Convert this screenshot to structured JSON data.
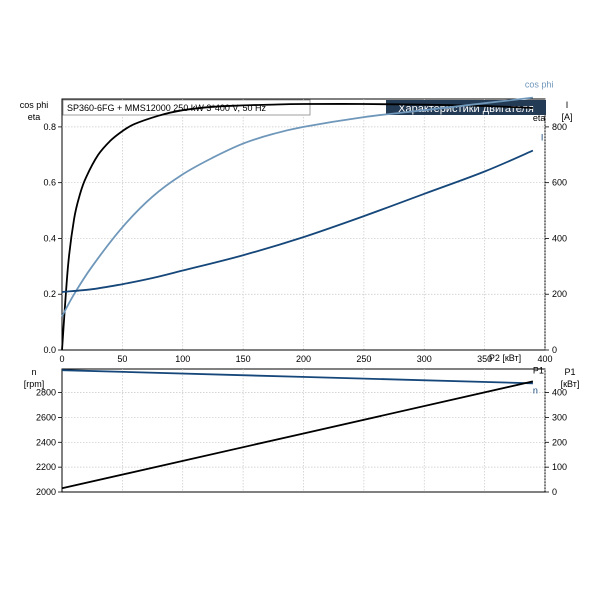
{
  "chart_data": [
    {
      "type": "line",
      "header": {
        "info": "SP360-6FG + MMS12000   250 kW   3*400 V, 50 Hz",
        "title": "Характеристики двигателя"
      },
      "left_axis": {
        "label_line1": "cos phi",
        "label_line2": "eta",
        "ylim": [
          0,
          0.9
        ],
        "ticks": [
          "0.0",
          "0.2",
          "0.4",
          "0.6",
          "0.8"
        ]
      },
      "right_axis": {
        "label_line1": "I",
        "label_line2": "[A]",
        "ylim": [
          0,
          900
        ],
        "ticks": [
          "0",
          "200",
          "400",
          "600",
          "800"
        ]
      },
      "x_axis": {
        "label": "P2 [кВт]",
        "xlim": [
          0,
          400
        ],
        "ticks": [
          "0",
          "50",
          "100",
          "150",
          "200",
          "250",
          "300",
          "350",
          "400"
        ]
      },
      "grid": true,
      "series": [
        {
          "name": "eta",
          "axis": "left",
          "color": "#000000",
          "x": [
            0,
            5,
            10,
            15,
            20,
            30,
            40,
            50,
            60,
            80,
            100,
            125,
            150,
            175,
            200,
            250,
            300,
            350,
            390
          ],
          "y": [
            0.0,
            0.3,
            0.47,
            0.56,
            0.62,
            0.7,
            0.75,
            0.785,
            0.81,
            0.84,
            0.86,
            0.872,
            0.877,
            0.88,
            0.882,
            0.882,
            0.88,
            0.875,
            0.868
          ]
        },
        {
          "name": "cos phi",
          "axis": "left",
          "color": "#6f97ba",
          "x": [
            0,
            10,
            25,
            50,
            75,
            100,
            125,
            150,
            175,
            200,
            250,
            300,
            350,
            390
          ],
          "y": [
            0.12,
            0.2,
            0.3,
            0.44,
            0.55,
            0.63,
            0.69,
            0.74,
            0.775,
            0.8,
            0.835,
            0.86,
            0.885,
            0.905
          ]
        },
        {
          "name": "I",
          "axis": "right",
          "color": "#16477a",
          "x": [
            0,
            25,
            50,
            75,
            100,
            150,
            200,
            250,
            300,
            350,
            390
          ],
          "y": [
            208,
            218,
            236,
            258,
            285,
            340,
            405,
            480,
            560,
            640,
            715
          ]
        }
      ]
    },
    {
      "type": "line",
      "left_axis": {
        "label_line1": "n",
        "label_line2": "[rpm]",
        "ylim": [
          2000,
          2990
        ],
        "ticks": [
          "2000",
          "2200",
          "2400",
          "2600",
          "2800"
        ]
      },
      "right_axis": {
        "label_line1": "P1",
        "label_line2": "[кВт]",
        "ylim": [
          0,
          495
        ],
        "ticks": [
          "0",
          "100",
          "200",
          "300",
          "400"
        ]
      },
      "x_axis": {
        "xlim": [
          0,
          400
        ]
      },
      "grid": true,
      "series": [
        {
          "name": "n",
          "axis": "left",
          "color": "#16477a",
          "x": [
            0,
            390
          ],
          "y": [
            2980,
            2875
          ]
        },
        {
          "name": "P1",
          "axis": "right",
          "color": "#000000",
          "x": [
            0,
            390
          ],
          "y": [
            15,
            445
          ]
        }
      ]
    }
  ]
}
